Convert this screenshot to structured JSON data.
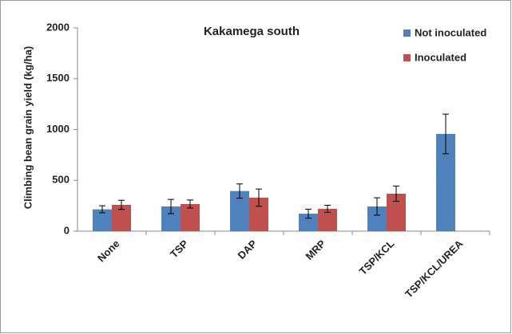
{
  "chart_data": {
    "type": "bar",
    "title": "Kakamega south",
    "y_label": "Climbing bean grain yield (kg/ha)",
    "categories": [
      "None",
      "TSP",
      "DAP",
      "MRP",
      "TSP/KCL",
      "TSP/KCL/UREA"
    ],
    "series": [
      {
        "name": "Not inoculated",
        "color": "#4f81bd",
        "values": [
          215,
          243,
          395,
          172,
          243,
          957
        ],
        "errors": [
          35,
          70,
          70,
          45,
          85,
          195
        ]
      },
      {
        "name": "Inoculated",
        "color": "#c0504d",
        "values": [
          259,
          267,
          330,
          220,
          369,
          null
        ],
        "errors": [
          45,
          40,
          85,
          35,
          75,
          null
        ]
      }
    ],
    "ylim": [
      0,
      2000
    ],
    "yticks": [
      0,
      500,
      1000,
      1500,
      2000
    ],
    "legend": "top-right"
  }
}
